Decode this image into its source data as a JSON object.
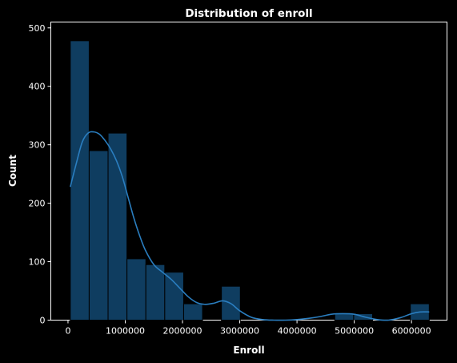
{
  "chart_data": {
    "type": "bar",
    "title": "Distribution of enroll",
    "xlabel": "Enroll",
    "ylabel": "Count",
    "xlim": [
      -300000,
      6620000
    ],
    "ylim": [
      0,
      510
    ],
    "xticks": [
      0,
      1000000,
      2000000,
      3000000,
      4000000,
      5000000,
      6000000
    ],
    "xtick_labels": [
      "0",
      "1000000",
      "2000000",
      "3000000",
      "4000000",
      "5000000",
      "6000000"
    ],
    "yticks": [
      0,
      100,
      200,
      300,
      400,
      500
    ],
    "ytick_labels": [
      "0",
      "100",
      "200",
      "300",
      "400",
      "500"
    ],
    "bin_edges": [
      40000,
      370000,
      700000,
      1030000,
      1360000,
      1690000,
      2020000,
      2350000,
      2680000,
      3010000,
      3340000,
      3670000,
      4000000,
      4330000,
      4660000,
      4990000,
      5320000,
      5650000,
      5980000,
      6310000
    ],
    "counts": [
      478,
      290,
      320,
      105,
      95,
      82,
      28,
      0,
      58,
      0,
      0,
      0,
      0,
      0,
      11,
      11,
      0,
      0,
      28
    ],
    "kde": {
      "x": [
        40000,
        150000,
        250000,
        350000,
        450000,
        550000,
        650000,
        750000,
        850000,
        950000,
        1050000,
        1150000,
        1250000,
        1350000,
        1500000,
        1650000,
        1800000,
        1950000,
        2100000,
        2250000,
        2400000,
        2550000,
        2700000,
        2850000,
        3000000,
        3200000,
        3400000,
        3600000,
        3800000,
        4000000,
        4200000,
        4400000,
        4600000,
        4800000,
        5000000,
        5200000,
        5400000,
        5600000,
        5800000,
        6000000,
        6150000,
        6310000
      ],
      "y": [
        228,
        270,
        305,
        320,
        322,
        318,
        307,
        292,
        272,
        245,
        210,
        175,
        145,
        120,
        95,
        82,
        70,
        55,
        40,
        30,
        27,
        29,
        33,
        28,
        16,
        5,
        1,
        0,
        0,
        1,
        3,
        6,
        10,
        11,
        10,
        5,
        1,
        0,
        4,
        11,
        14,
        14
      ]
    },
    "bar_color": "#0f3d60",
    "bar_edge_color": "#000000",
    "line_color": "#2a7ec0",
    "background": "#000000",
    "grid": false
  }
}
